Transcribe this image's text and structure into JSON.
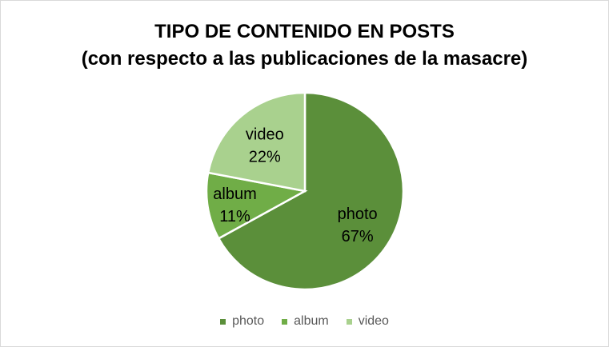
{
  "chart_data": {
    "type": "pie",
    "title": "TIPO DE CONTENIDO EN POSTS",
    "subtitle": "(con respecto a las publicaciones de la masacre)",
    "slices": [
      {
        "label": "photo",
        "percent_label": "67%",
        "value": 67,
        "color": "#5b8f3a"
      },
      {
        "label": "album",
        "percent_label": "11%",
        "value": 11,
        "color": "#70ad47"
      },
      {
        "label": "video",
        "percent_label": "22%",
        "value": 22,
        "color": "#a9d18e"
      }
    ],
    "legend_position": "bottom"
  },
  "colors": {
    "slice_border": "#ffffff",
    "label_text": "#000000",
    "legend_text": "#595959"
  }
}
